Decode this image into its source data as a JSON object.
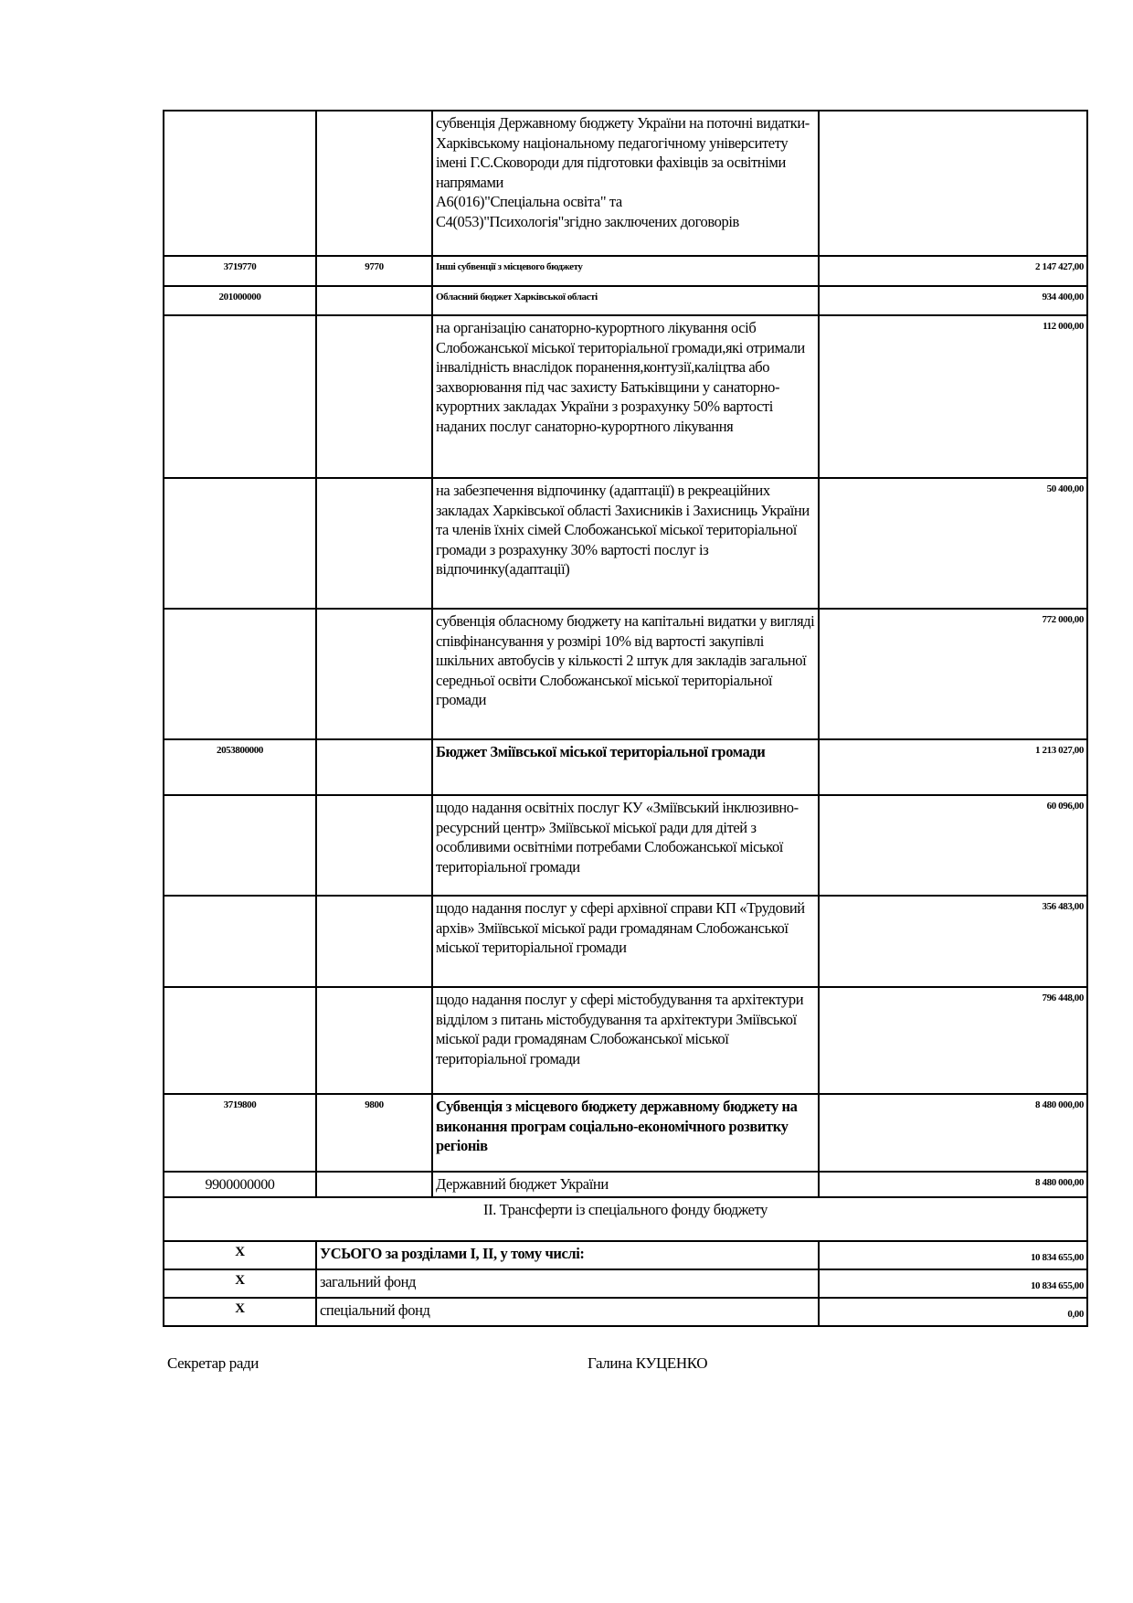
{
  "table": {
    "rows": [
      {
        "code1": "",
        "code2": "",
        "text": "субвенція Державному бюджету України на поточні видатки-Харківському національному педагогічному університету імені Г.С.Сковороди для підготовки фахівців за освітніми напрямами\nА6(016)\"Спеціальна освіта\" та\nС4(053)\"Психологія\"згідно заключених договорів",
        "amount": "",
        "style": "normal",
        "h": 159
      },
      {
        "code1": "3719770",
        "code2": "9770",
        "text": "Інші субвенції з місцевого бюджету",
        "amount": "2 147 427,00",
        "style": "small",
        "h": 33
      },
      {
        "code1": "201000000",
        "code2": "",
        "text": "Обласний бюджет Харківської області",
        "amount": "934 400,00",
        "style": "small",
        "h": 32
      },
      {
        "code1": "",
        "code2": "",
        "text": "на організацію санаторно-курортного лікування осіб Слобожанської міської територіальної громади,які отримали інвалідність внаслідок поранення,контузії,каліцтва або захворювання під час захисту Батьківщини у санаторно-курортних закладах України з розрахунку 50% вартості наданих послуг санаторно-курортного лікування",
        "amount": "112 000,00",
        "style": "normal",
        "h": 178
      },
      {
        "code1": "",
        "code2": "",
        "text": "на забезпечення відпочинку (адаптації) в рекреаційних закладах Харківської області Захисників і Захисниць України та членів їхніх сімей Слобожанської міської територіальної громади з розрахунку 30% вартості  послуг із відпочинку(адаптації)",
        "amount": "50 400,00",
        "style": "normal",
        "h": 143
      },
      {
        "code1": "",
        "code2": "",
        "text": "субвенція обласному бюджету на капітальні видатки у вигляді співфінансування у розмірі 10% від вартості закупівлі шкільних автобусів у кількості 2 штук для закладів загальної середньої освіти Слобожанської міської територіальної громади",
        "amount": "772 000,00",
        "style": "normal",
        "h": 143
      },
      {
        "code1": "2053800000",
        "code2": "",
        "text": "Бюджет Зміївської міської територіальної громади",
        "amount": "1 213 027,00",
        "style": "bold",
        "h": 61
      },
      {
        "code1": "",
        "code2": "",
        "text": "щодо надання освітніх послуг КУ «Зміївський інклюзивно- ресурсний центр» Зміївської міської ради для дітей з особливими освітніми потребами Слобожанської міської територіальної громади",
        "amount": "60 096,00",
        "style": "normal",
        "h": 110
      },
      {
        "code1": "",
        "code2": "",
        "text": "щодо надання послуг у сфері архівної справи КП «Трудовий архів» Зміївської міської ради громадянам Слобожанської міської територіальної громади",
        "amount": "356 483,00",
        "style": "normal",
        "h": 100
      },
      {
        "code1": "",
        "code2": "",
        "text": "щодо надання послуг у сфері містобудування та архітектури відділом з питань містобудування та архітектури Зміївської міської ради громадянам Слобожанської міської територіальної громади",
        "amount": "796 448,00",
        "style": "normal",
        "h": 117
      },
      {
        "code1": "3719800",
        "code2": "9800",
        "text": "Субвенція з місцевого бюджету державному бюджету на виконання програм соціально-економічного розвитку регіонів",
        "amount": "8 480 000,00",
        "style": "bold",
        "h": 85
      },
      {
        "code1": "9900000000",
        "code2": "",
        "text": "Державний бюджет України",
        "amount": "8 480 000,00",
        "style": "big",
        "h": 25
      }
    ],
    "section_title": "ІІ. Трансферти із спеціального фонду бюджету",
    "totals": [
      {
        "code": "Х",
        "label": "УСЬОГО за розділами І, ІІ, у тому числі:",
        "amount": "10 834 655,00",
        "bold": true
      },
      {
        "code": "Х",
        "label": "загальний фонд",
        "amount": "10 834 655,00",
        "bold": false
      },
      {
        "code": "Х",
        "label": "спеціальний фонд",
        "amount": "0,00",
        "bold": false
      }
    ]
  },
  "signature": {
    "position": "Секретар ради",
    "name": "Галина КУЦЕНКО"
  }
}
